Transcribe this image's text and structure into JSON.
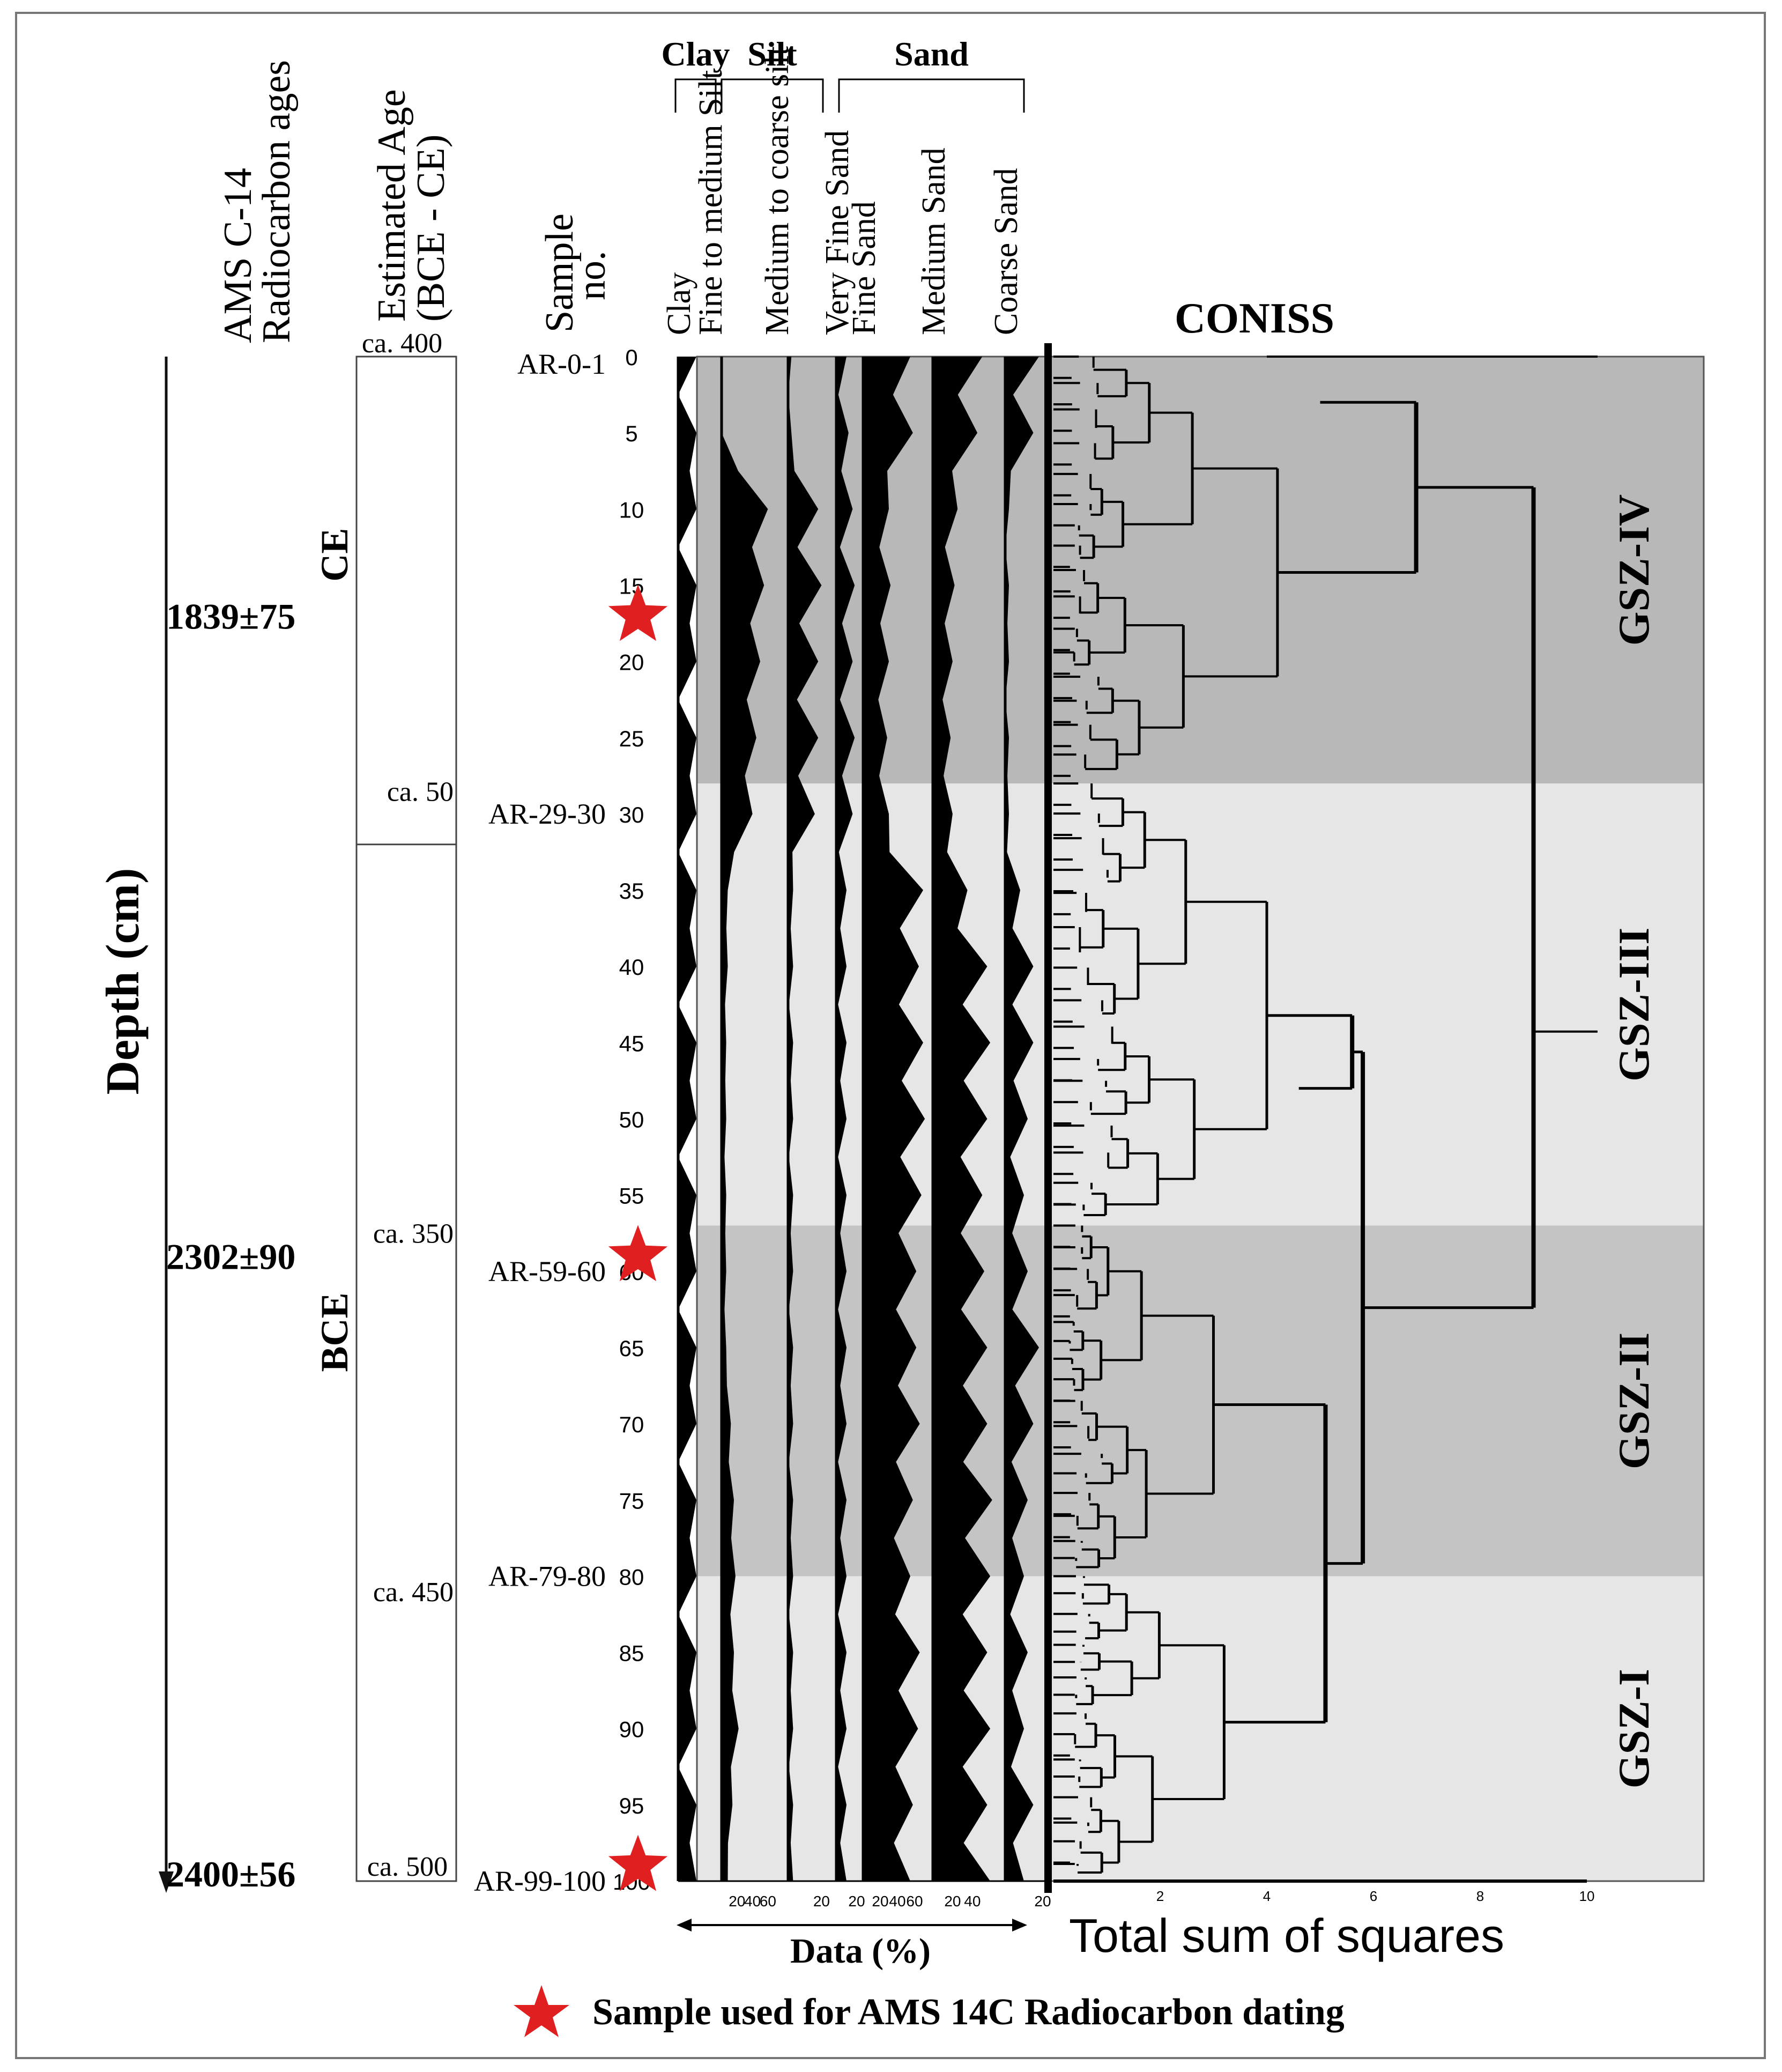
{
  "chart_data": {
    "type": "stratigraphic-diagram",
    "depth_axis": {
      "label": "Depth (cm)",
      "ticks": [
        0,
        5,
        10,
        15,
        20,
        25,
        30,
        35,
        40,
        45,
        50,
        55,
        60,
        65,
        70,
        75,
        80,
        85,
        90,
        95,
        100
      ],
      "range": [
        0,
        100
      ]
    },
    "radiocarbon": {
      "header": [
        "AMS C-14",
        "Radiocarbon ages"
      ],
      "ages": [
        {
          "depth": 17,
          "label": "1839±75"
        },
        {
          "depth": 59,
          "label": "2302±90"
        },
        {
          "depth": 99.5,
          "label": "2400±56"
        }
      ],
      "eras": [
        {
          "label": "CE",
          "depth": 13
        },
        {
          "label": "BCE",
          "depth": 64
        }
      ]
    },
    "estimated_age": {
      "header": [
        "Estimated Age",
        "(BCE - CE)"
      ],
      "boundary_depth": 32,
      "labels": [
        {
          "depth": 0,
          "label": "ca. 400"
        },
        {
          "depth": 28.5,
          "label": "ca. 50"
        },
        {
          "depth": 57.5,
          "label": "ca. 350"
        },
        {
          "depth": 81,
          "label": "ca. 450"
        },
        {
          "depth": 99.5,
          "label": "ca. 500"
        }
      ]
    },
    "samples": {
      "header": [
        "Sample",
        "no."
      ],
      "labels": [
        {
          "depth": 0.5,
          "label": "AR-0-1"
        },
        {
          "depth": 30,
          "label": "AR-29-30"
        },
        {
          "depth": 60,
          "label": "AR-59-60"
        },
        {
          "depth": 80,
          "label": "AR-79-80"
        },
        {
          "depth": 100,
          "label": "AR-99-100"
        }
      ],
      "dated_depths": [
        17,
        59,
        99
      ]
    },
    "group_headers": [
      {
        "label": "Clay",
        "from": 0,
        "to": 0
      },
      {
        "label": "Silt",
        "from": 1,
        "to": 2
      },
      {
        "label": "Sand",
        "from": 3,
        "to": 6
      }
    ],
    "series": [
      {
        "name": "Clay",
        "axis_ticks": [],
        "values": [
          1,
          1,
          1,
          1,
          1,
          1,
          1,
          1,
          1,
          1,
          1,
          1,
          1,
          1,
          1,
          1,
          1,
          1,
          1,
          1,
          1
        ]
      },
      {
        "name": "Fine to medium Silt",
        "axis_ticks": [
          20,
          40,
          60
        ],
        "values": [
          0,
          0,
          60,
          55,
          50,
          45,
          40,
          8,
          8,
          6,
          6,
          6,
          6,
          6,
          12,
          16,
          18,
          16,
          22,
          14,
          8
        ]
      },
      {
        "name": "Medium to coarse silt",
        "axis_ticks": [
          20
        ],
        "values": [
          2,
          2,
          18,
          20,
          18,
          18,
          16,
          3,
          3,
          3,
          3,
          3,
          3,
          3,
          3,
          3,
          3,
          3,
          3,
          3,
          3
        ]
      },
      {
        "name": "Very Fine Sand",
        "axis_ticks": [
          20
        ],
        "values": [
          5,
          6,
          8,
          9,
          8,
          9,
          8,
          5,
          5,
          5,
          5,
          5,
          5,
          5,
          5,
          5,
          5,
          5,
          5,
          5,
          5
        ]
      },
      {
        "name": "Fine Sand",
        "axis_ticks": [
          20,
          40,
          60
        ],
        "values": [
          55,
          58,
          30,
          32,
          30,
          28,
          30,
          70,
          65,
          70,
          72,
          68,
          62,
          62,
          66,
          58,
          55,
          66,
          64,
          58,
          55
        ]
      },
      {
        "name": "Medium Sand",
        "axis_ticks": [
          20,
          40
        ],
        "values": [
          50,
          45,
          25,
          22,
          20,
          18,
          20,
          35,
          55,
          58,
          55,
          50,
          52,
          55,
          55,
          60,
          58,
          55,
          58,
          55,
          58
        ]
      },
      {
        "name": "Coarse Sand",
        "axis_ticks": [
          20
        ],
        "values": [
          18,
          15,
          2,
          2,
          2,
          2,
          2,
          8,
          15,
          15,
          12,
          10,
          12,
          18,
          15,
          12,
          10,
          12,
          10,
          15,
          10
        ]
      }
    ],
    "x_axis_label": "Data (%)",
    "coniss": {
      "title": "CONISS",
      "xlabel": "Total sum of squares",
      "x_ticks": [
        2,
        4,
        6,
        8,
        10
      ],
      "xlim": [
        0,
        10
      ],
      "zones": [
        {
          "label": "GSZ-IV",
          "from": 0,
          "to": 28,
          "shade": "#b8b8b8"
        },
        {
          "label": "GSZ-III",
          "from": 28,
          "to": 57,
          "shade": "#e6e6e6"
        },
        {
          "label": "GSZ-II",
          "from": 57,
          "to": 80,
          "shade": "#c4c4c4"
        },
        {
          "label": "GSZ-I",
          "from": 80,
          "to": 100,
          "shade": "#e6e6e6"
        }
      ],
      "major_merges": [
        {
          "from": 0,
          "to": 28,
          "height": 6.8
        },
        {
          "from": 28,
          "to": 57,
          "height": 5.6
        },
        {
          "from": 57,
          "to": 80,
          "height": 5.0
        },
        {
          "from": 80,
          "to": 100,
          "height": 4.9
        },
        {
          "from": 28,
          "to": 100,
          "height": 5.8
        },
        {
          "from": 0,
          "to": 100,
          "height": 9.0
        }
      ]
    }
  },
  "legend": {
    "marker": "star",
    "label": "Sample used for AMS 14C Radiocarbon dating",
    "color": "#e02020"
  }
}
